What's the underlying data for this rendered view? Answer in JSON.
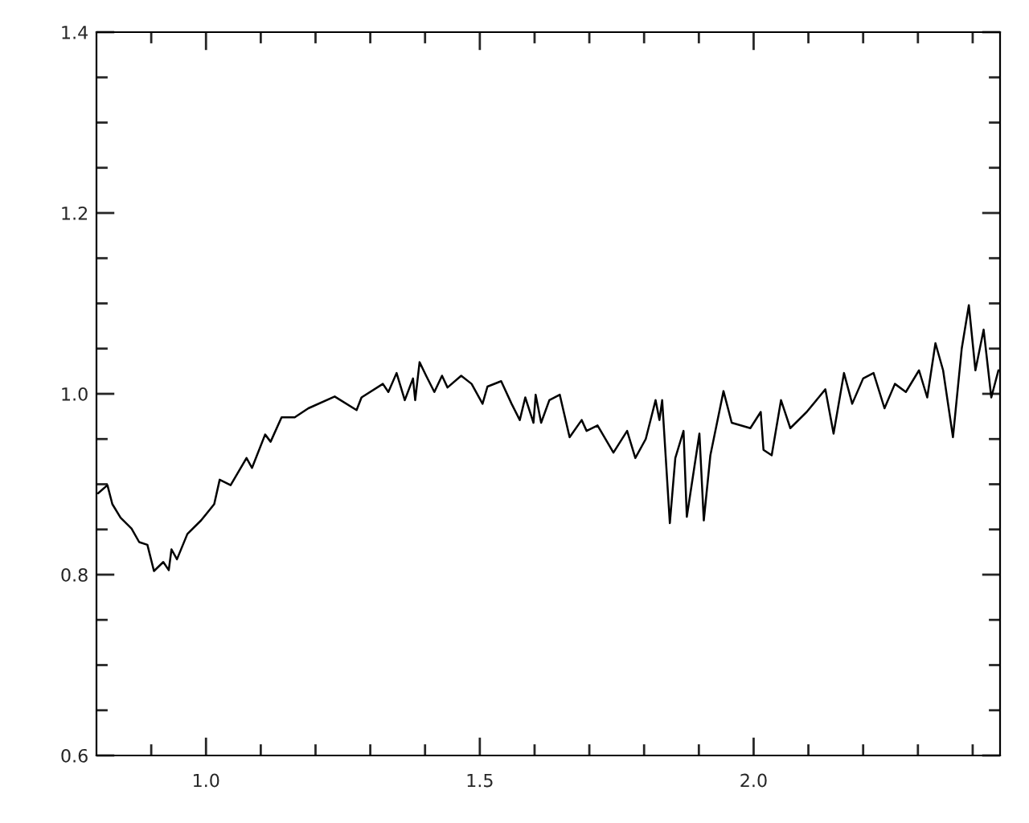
{
  "chart_data": {
    "type": "line",
    "x": [
      0.803,
      0.82,
      0.829,
      0.844,
      0.864,
      0.878,
      0.893,
      0.905,
      0.922,
      0.932,
      0.937,
      0.947,
      0.966,
      0.991,
      1.015,
      1.025,
      1.045,
      1.074,
      1.084,
      1.108,
      1.118,
      1.138,
      1.162,
      1.187,
      1.235,
      1.275,
      1.284,
      1.323,
      1.333,
      1.348,
      1.363,
      1.378,
      1.382,
      1.39,
      1.402,
      1.417,
      1.431,
      1.441,
      1.466,
      1.485,
      1.505,
      1.514,
      1.539,
      1.558,
      1.573,
      1.583,
      1.598,
      1.602,
      1.612,
      1.627,
      1.646,
      1.664,
      1.686,
      1.695,
      1.715,
      1.744,
      1.769,
      1.784,
      1.803,
      1.821,
      1.828,
      1.833,
      1.847,
      1.857,
      1.872,
      1.878,
      1.901,
      1.909,
      1.921,
      1.945,
      1.96,
      1.994,
      2.013,
      2.018,
      2.033,
      2.05,
      2.067,
      2.097,
      2.131,
      2.146,
      2.165,
      2.18,
      2.2,
      2.219,
      2.239,
      2.258,
      2.278,
      2.302,
      2.317,
      2.332,
      2.346,
      2.364,
      2.38,
      2.393,
      2.405,
      2.42,
      2.434,
      2.447
    ],
    "series": [
      {
        "color": "#000000",
        "values": [
          0.89,
          0.899,
          0.878,
          0.863,
          0.851,
          0.836,
          0.833,
          0.804,
          0.814,
          0.805,
          0.828,
          0.817,
          0.845,
          0.86,
          0.878,
          0.905,
          0.899,
          0.929,
          0.918,
          0.955,
          0.947,
          0.974,
          0.974,
          0.984,
          0.997,
          0.982,
          0.996,
          1.011,
          1.002,
          1.023,
          0.993,
          1.017,
          0.993,
          1.035,
          1.02,
          1.002,
          1.02,
          1.007,
          1.02,
          1.011,
          0.989,
          1.008,
          1.014,
          0.989,
          0.971,
          0.996,
          0.968,
          0.999,
          0.968,
          0.993,
          0.999,
          0.952,
          0.971,
          0.959,
          0.965,
          0.935,
          0.959,
          0.929,
          0.95,
          0.993,
          0.971,
          0.993,
          0.857,
          0.929,
          0.959,
          0.864,
          0.956,
          0.86,
          0.932,
          1.003,
          0.968,
          0.962,
          0.98,
          0.938,
          0.932,
          0.993,
          0.962,
          0.98,
          1.005,
          0.956,
          1.023,
          0.989,
          1.017,
          1.023,
          0.984,
          1.011,
          1.002,
          1.026,
          0.996,
          1.056,
          1.026,
          0.952,
          1.05,
          1.098,
          1.026,
          1.071,
          0.996,
          1.026
        ]
      }
    ],
    "xlim": [
      0.8,
      2.45
    ],
    "ylim": [
      0.6,
      1.4
    ],
    "xticks": [
      {
        "value": 0.9,
        "label": null
      },
      {
        "value": 1,
        "label": "1.0"
      },
      {
        "value": 1.1,
        "label": null
      },
      {
        "value": 1.2,
        "label": null
      },
      {
        "value": 1.3,
        "label": null
      },
      {
        "value": 1.4,
        "label": null
      },
      1.5,
      {
        "value": 1.6,
        "label": null
      },
      {
        "value": 1.7,
        "label": null
      },
      {
        "value": 1.8,
        "label": null
      },
      {
        "value": 1.9,
        "label": null
      },
      {
        "value": 2,
        "label": "2.0"
      },
      {
        "value": 2.1,
        "label": null
      },
      {
        "value": 2.2,
        "label": null
      },
      {
        "value": 2.3,
        "label": null
      },
      {
        "value": 2.4,
        "label": null
      }
    ],
    "yticks": [
      0.6,
      {
        "value": 0.65,
        "label": null
      },
      {
        "value": 0.7,
        "label": null
      },
      {
        "value": 0.75,
        "label": null
      },
      0.8,
      {
        "value": 0.85,
        "label": null
      },
      {
        "value": 0.9,
        "label": null
      },
      {
        "value": 0.95,
        "label": null
      },
      {
        "value": 1,
        "label": "1.0"
      },
      {
        "value": 1.05,
        "label": null
      },
      {
        "value": 1.1,
        "label": null
      },
      {
        "value": 1.15,
        "label": null
      },
      1.2,
      {
        "value": 1.25,
        "label": null
      },
      {
        "value": 1.3,
        "label": null
      },
      {
        "value": 1.35,
        "label": null
      },
      1.4
    ],
    "grid": false,
    "marker": "none",
    "line_style": "solid"
  }
}
